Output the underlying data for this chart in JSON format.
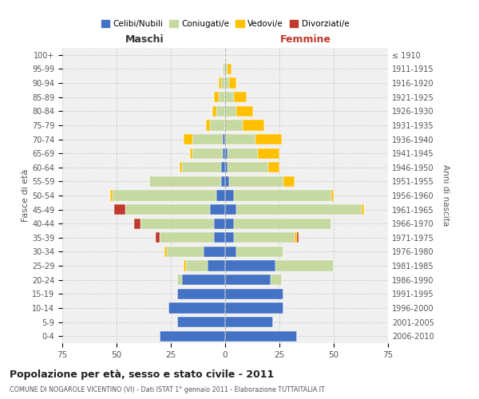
{
  "age_groups": [
    "100+",
    "95-99",
    "90-94",
    "85-89",
    "80-84",
    "75-79",
    "70-74",
    "65-69",
    "60-64",
    "55-59",
    "50-54",
    "45-49",
    "40-44",
    "35-39",
    "30-34",
    "25-29",
    "20-24",
    "15-19",
    "10-14",
    "5-9",
    "0-4"
  ],
  "birth_years": [
    "≤ 1910",
    "1911-1915",
    "1916-1920",
    "1921-1925",
    "1926-1930",
    "1931-1935",
    "1936-1940",
    "1941-1945",
    "1946-1950",
    "1951-1955",
    "1956-1960",
    "1961-1965",
    "1966-1970",
    "1971-1975",
    "1976-1980",
    "1981-1985",
    "1986-1990",
    "1991-1995",
    "1996-2000",
    "2001-2005",
    "2006-2010"
  ],
  "males": {
    "celibi": [
      0,
      0,
      0,
      0,
      0,
      0,
      1,
      1,
      2,
      2,
      4,
      7,
      5,
      5,
      10,
      8,
      20,
      22,
      26,
      22,
      30
    ],
    "coniugati": [
      0,
      1,
      2,
      3,
      4,
      7,
      14,
      14,
      18,
      33,
      48,
      39,
      34,
      25,
      17,
      10,
      2,
      0,
      0,
      0,
      0
    ],
    "vedovi": [
      0,
      0,
      1,
      2,
      2,
      2,
      4,
      1,
      1,
      0,
      1,
      0,
      0,
      0,
      1,
      1,
      0,
      0,
      0,
      0,
      0
    ],
    "divorziati": [
      0,
      0,
      0,
      0,
      0,
      0,
      0,
      0,
      0,
      0,
      0,
      5,
      3,
      2,
      0,
      0,
      0,
      0,
      0,
      0,
      0
    ]
  },
  "females": {
    "nubili": [
      0,
      0,
      0,
      0,
      0,
      0,
      0,
      1,
      1,
      2,
      4,
      5,
      4,
      4,
      5,
      23,
      21,
      27,
      27,
      22,
      33
    ],
    "coniugate": [
      0,
      1,
      2,
      4,
      5,
      8,
      14,
      14,
      19,
      25,
      45,
      58,
      45,
      28,
      22,
      27,
      5,
      0,
      0,
      0,
      0
    ],
    "vedove": [
      0,
      2,
      3,
      6,
      8,
      10,
      12,
      10,
      5,
      5,
      1,
      1,
      0,
      1,
      0,
      0,
      0,
      0,
      0,
      0,
      0
    ],
    "divorziate": [
      0,
      0,
      0,
      0,
      0,
      0,
      0,
      0,
      0,
      0,
      0,
      0,
      0,
      1,
      0,
      0,
      0,
      0,
      0,
      0,
      0
    ]
  },
  "colors": {
    "celibi_nubili": "#4472c4",
    "coniugati": "#c5d9a0",
    "vedovi": "#ffc000",
    "divorziati": "#c0392b"
  },
  "xlim": 75,
  "title": "Popolazione per età, sesso e stato civile - 2011",
  "subtitle": "COMUNE DI NOGAROLE VICENTINO (VI) - Dati ISTAT 1° gennaio 2011 - Elaborazione TUTTAITALIA.IT",
  "xlabel_left": "Maschi",
  "xlabel_right": "Femmine",
  "ylabel_left": "Fasce di età",
  "ylabel_right": "Anni di nascita",
  "legend_labels": [
    "Celibi/Nubili",
    "Coniugati/e",
    "Vedovi/e",
    "Divorziati/e"
  ],
  "bg_color": "#ffffff",
  "plot_bg_color": "#f0f0f0",
  "grid_color": "#cccccc",
  "bar_height": 0.75
}
